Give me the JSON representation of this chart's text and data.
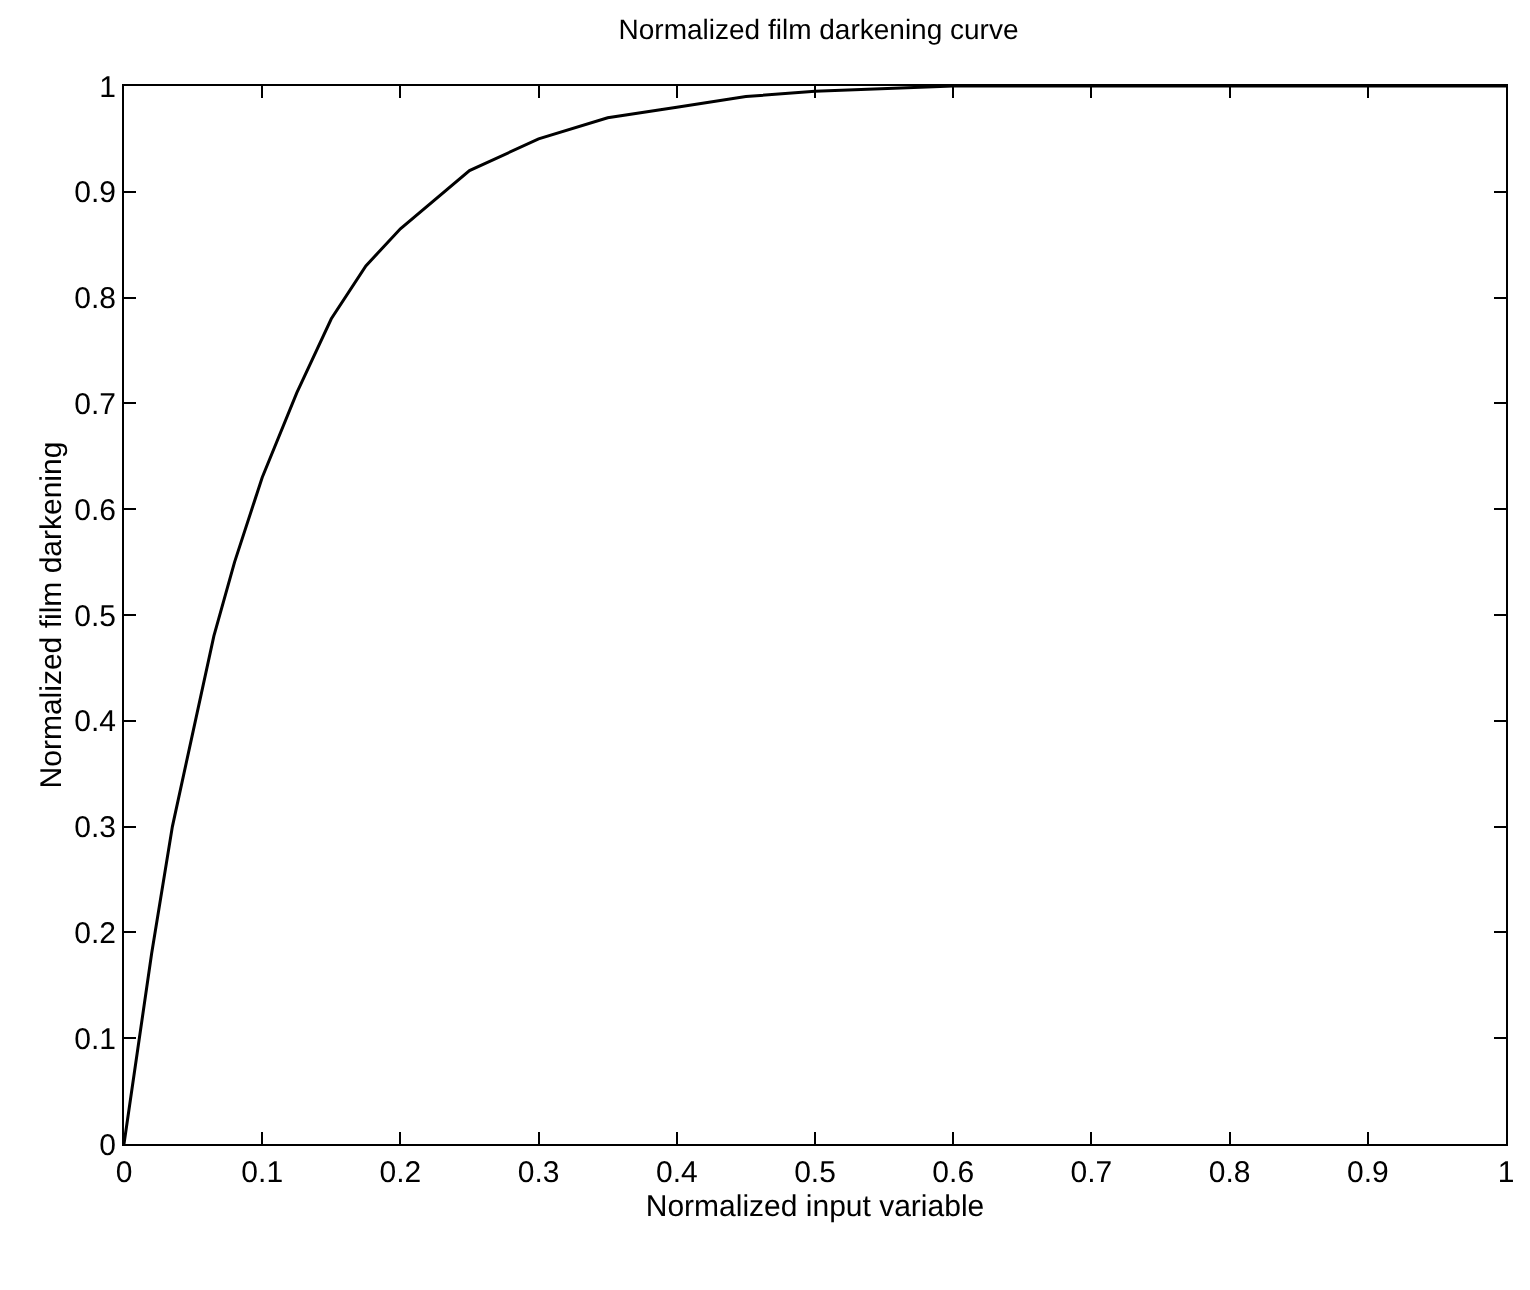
{
  "chart_data": {
    "type": "line",
    "title": "Normalized film darkening curve",
    "xlabel": "Normalized input variable",
    "ylabel": "Normalized film darkening",
    "x": [
      0,
      0.01,
      0.02,
      0.035,
      0.05,
      0.065,
      0.08,
      0.1,
      0.125,
      0.15,
      0.175,
      0.2,
      0.25,
      0.3,
      0.35,
      0.4,
      0.45,
      0.5,
      0.6,
      0.7,
      0.8,
      0.9,
      1
    ],
    "series": [
      {
        "color": "#000000",
        "values": [
          0,
          0.09,
          0.18,
          0.3,
          0.39,
          0.48,
          0.55,
          0.63,
          0.71,
          0.78,
          0.83,
          0.865,
          0.92,
          0.95,
          0.97,
          0.98,
          0.99,
          0.995,
          1,
          1,
          1,
          1,
          1
        ]
      }
    ],
    "xlim": [
      0,
      1
    ],
    "xticks": [
      0,
      0.1,
      0.2,
      0.3,
      0.4,
      0.5,
      0.6,
      0.7,
      0.8,
      0.9,
      1
    ],
    "ylim": [
      0,
      1
    ],
    "yticks": [
      0,
      0.1,
      0.2,
      0.3,
      0.4,
      0.5,
      0.6,
      0.7,
      0.8,
      0.9,
      1
    ],
    "grid": false,
    "marker": "none",
    "line_style": "solid"
  }
}
